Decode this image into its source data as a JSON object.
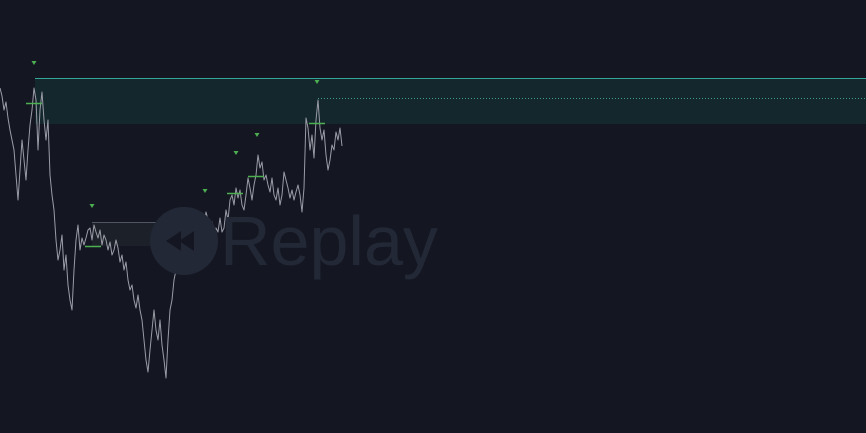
{
  "watermark": {
    "text": "Replay",
    "icon": "rewind-icon"
  },
  "colors": {
    "background": "#141722",
    "price_line": "#9a9ca6",
    "marker": "#4caf50",
    "zone_fill": "#14272d",
    "zone_border": "#35a69a",
    "zone_dotted": "#3f9f93",
    "small_zone_fill": "#1c2029",
    "small_zone_border": "#505563",
    "watermark": "#232837"
  }
}
